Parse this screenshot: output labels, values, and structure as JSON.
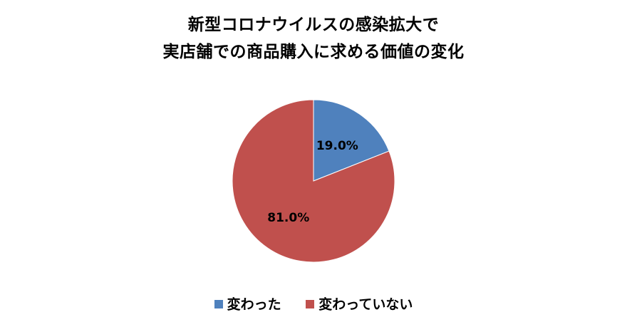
{
  "chart_data": {
    "type": "pie",
    "title": "新型コロナウイルスの感染拡大で\n実店舗での商品購入に求める価値の変化",
    "title_lines": [
      "新型コロナウイルスの感染拡大で",
      "実店舗での商品購入に求める価値の変化"
    ],
    "categories": [
      "変わった",
      "変わっていない"
    ],
    "values": [
      19.0,
      81.0
    ],
    "data_labels": [
      "19.0%",
      "81.0%"
    ],
    "colors": [
      "#4F81BD",
      "#C0504D"
    ],
    "start_angle_deg": 0,
    "direction": "clockwise",
    "legend_position": "bottom"
  }
}
